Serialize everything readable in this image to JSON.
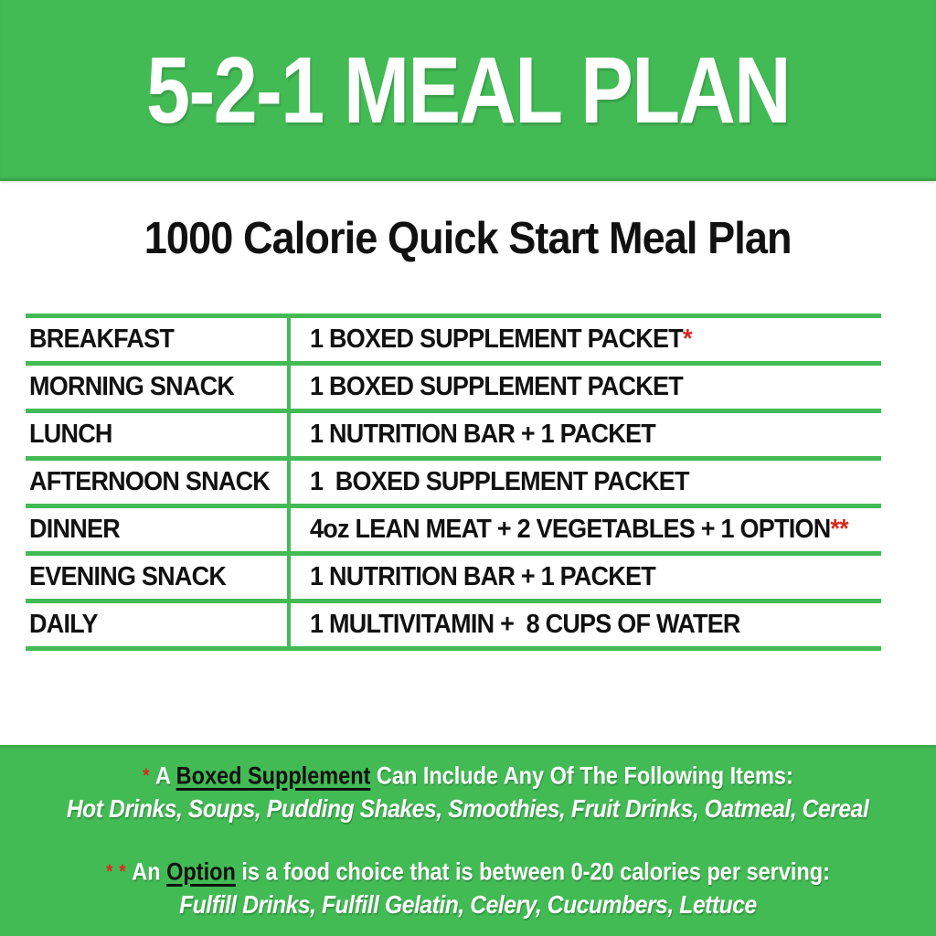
{
  "header": {
    "title": "5-2-1 MEAL PLAN"
  },
  "subtitle": "1000 Calorie Quick Start Meal Plan",
  "table": {
    "rows": [
      {
        "meal": "BREAKFAST",
        "item": "1 BOXED SUPPLEMENT PACKET",
        "star": "*"
      },
      {
        "meal": "MORNING SNACK",
        "item": "1 BOXED SUPPLEMENT PACKET",
        "star": ""
      },
      {
        "meal": "LUNCH",
        "item": "1 NUTRITION BAR + 1 PACKET",
        "star": ""
      },
      {
        "meal": "AFTERNOON SNACK",
        "item": "1  BOXED SUPPLEMENT PACKET",
        "star": ""
      },
      {
        "meal": "DINNER",
        "item": "4oz LEAN MEAT + 2 VEGETABLES + 1 OPTION",
        "star": "**"
      },
      {
        "meal": "EVENING SNACK",
        "item": "1 NUTRITION BAR + 1 PACKET",
        "star": ""
      },
      {
        "meal": "DAILY",
        "item": "1 MULTIVITAMIN +  8 CUPS OF WATER",
        "star": ""
      }
    ]
  },
  "notes": [
    {
      "marker": "*",
      "prefix": "A",
      "keyword": "Boxed Supplement",
      "rest": "Can Include Any Of The Following Items:",
      "items": "Hot Drinks, Soups, Pudding Shakes, Smoothies, Fruit Drinks, Oatmeal, Cereal"
    },
    {
      "marker": "* *",
      "prefix": "An",
      "keyword": "Option",
      "rest": "is a food choice that is between 0-20 calories per serving:",
      "items": "Fulfill Drinks, Fulfill Gelatin, Celery, Cucumbers, Lettuce"
    }
  ],
  "colors": {
    "green": "#43BB55",
    "red": "#D9281E",
    "black": "#111111",
    "white": "#FFFFFF"
  }
}
